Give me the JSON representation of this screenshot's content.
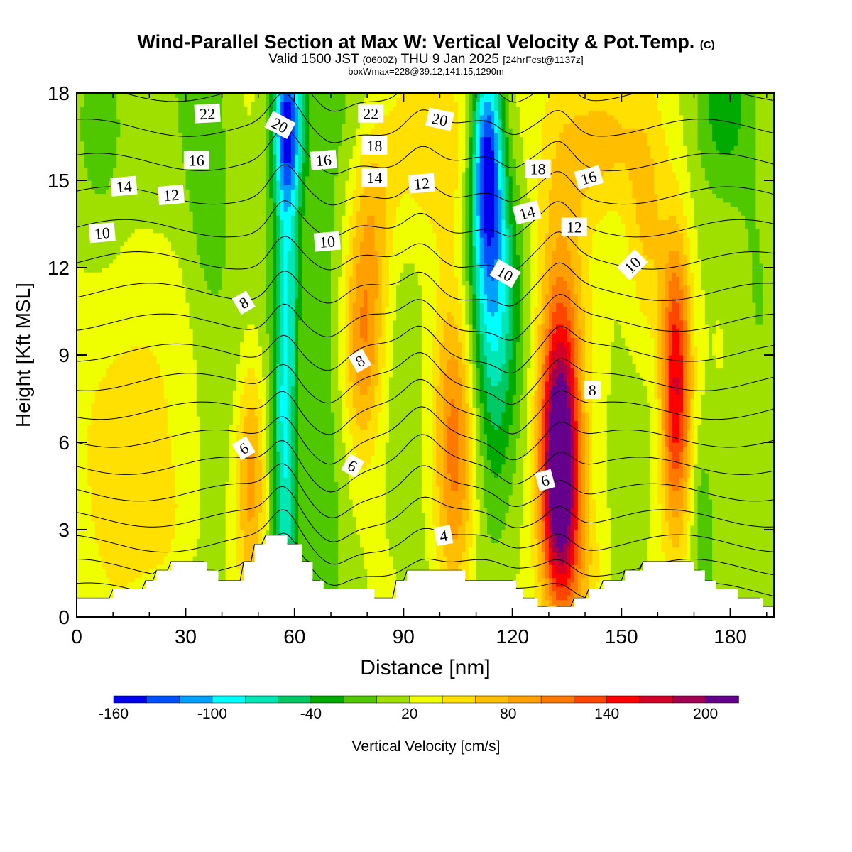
{
  "header": {
    "title": "Wind-Parallel Section at Max W: Vertical Velocity & Pot.Temp.",
    "title_mark": "(C)",
    "valid_prefix": "Valid 1500 JST",
    "valid_utc": "(0600Z)",
    "valid_date": "THU 9 Jan 2025",
    "forecast_info": "[24hrFcst@1137z]",
    "box_info": "boxWmax=228@39.12,141.15,1290m"
  },
  "chart_data": {
    "type": "heatmap",
    "title": "Wind-Parallel Section at Max W: Vertical Velocity & Pot.Temp.",
    "xlabel": "Distance [nm]",
    "ylabel": "Height [Kft MSL]",
    "xlim": [
      0,
      192
    ],
    "ylim": [
      0,
      18
    ],
    "x_ticks": [
      0,
      30,
      60,
      90,
      120,
      150,
      180
    ],
    "y_ticks": [
      0,
      3,
      6,
      9,
      12,
      15,
      18
    ],
    "colorbar": {
      "label": "Vertical Velocity [cm/s]",
      "min": -160,
      "max": 220,
      "step": 20,
      "tick_labels": [
        -160,
        -100,
        -40,
        20,
        80,
        140,
        200
      ],
      "colors": [
        "#0000ee",
        "#0050ff",
        "#00a0ff",
        "#00ffff",
        "#00e6b4",
        "#00c864",
        "#00aa00",
        "#50c800",
        "#a0e000",
        "#f0ff00",
        "#ffe000",
        "#ffbe00",
        "#ffa000",
        "#ff7800",
        "#ff4600",
        "#ff0000",
        "#d20028",
        "#a00050",
        "#64008c"
      ]
    },
    "max_w": {
      "value": 228,
      "units": "cm/s",
      "lat": 39.12,
      "lon": 141.15,
      "height_m": 1290
    },
    "updrafts": [
      {
        "x": 12,
        "z": 6.5,
        "w": 45,
        "sx": 10,
        "sz": 4
      },
      {
        "x": 25,
        "z": 2.8,
        "w": 25,
        "sx": 6,
        "sz": 2
      },
      {
        "x": 48,
        "z": 5,
        "w": 75,
        "sx": 3,
        "sz": 3
      },
      {
        "x": 79,
        "z": 9.5,
        "w": 85,
        "sx": 4,
        "sz": 3
      },
      {
        "x": 82,
        "z": 14,
        "w": 40,
        "sx": 4,
        "sz": 3
      },
      {
        "x": 104,
        "z": 5.5,
        "w": 95,
        "sx": 4,
        "sz": 4
      },
      {
        "x": 133,
        "z": 5,
        "w": 200,
        "sx": 3.5,
        "sz": 3
      },
      {
        "x": 133,
        "z": 9,
        "w": 80,
        "sx": 5,
        "sz": 5
      },
      {
        "x": 139,
        "z": 1.5,
        "w": 50,
        "sx": 5,
        "sz": 2
      },
      {
        "x": 165,
        "z": 8,
        "w": 155,
        "sx": 3,
        "sz": 3.5
      },
      {
        "x": 157,
        "z": 13,
        "w": 50,
        "sx": 4,
        "sz": 3
      },
      {
        "x": 144,
        "z": 16.5,
        "w": 60,
        "sx": 8,
        "sz": 2
      },
      {
        "x": 100,
        "z": 16.5,
        "w": 50,
        "sx": 10,
        "sz": 2.5
      },
      {
        "x": 57,
        "z": 5,
        "w": 0,
        "sx": 1,
        "sz": 1
      }
    ],
    "downdrafts": [
      {
        "x": 57,
        "z": 4,
        "w": -70,
        "sx": 2.5,
        "sz": 5
      },
      {
        "x": 58,
        "z": 12,
        "w": -70,
        "sx": 2.5,
        "sz": 5
      },
      {
        "x": 58,
        "z": 17,
        "w": -120,
        "sx": 3,
        "sz": 2
      },
      {
        "x": 113,
        "z": 16,
        "w": -150,
        "sx": 3,
        "sz": 2.5
      },
      {
        "x": 114,
        "z": 12,
        "w": -80,
        "sx": 5,
        "sz": 3
      },
      {
        "x": 115,
        "z": 8,
        "w": -40,
        "sx": 4,
        "sz": 4
      },
      {
        "x": 36,
        "z": 16,
        "w": -30,
        "sx": 4,
        "sz": 4
      },
      {
        "x": 7,
        "z": 17,
        "w": -40,
        "sx": 4,
        "sz": 2
      },
      {
        "x": 68,
        "z": 9,
        "w": -30,
        "sx": 4,
        "sz": 6
      },
      {
        "x": 178,
        "z": 17.5,
        "w": -35,
        "sx": 5,
        "sz": 2
      },
      {
        "x": 172,
        "z": 3.5,
        "w": -25,
        "sx": 2,
        "sz": 2
      },
      {
        "x": 186,
        "z": 11,
        "w": -15,
        "sx": 4,
        "sz": 4
      },
      {
        "x": 80,
        "z": 17.5,
        "w": -20,
        "sx": 6,
        "sz": 1.5
      }
    ],
    "terrain": [
      {
        "x": 0,
        "z": 0.65
      },
      {
        "x": 10,
        "z": 0.65
      },
      {
        "x": 10,
        "z": 0.95
      },
      {
        "x": 19,
        "z": 0.95
      },
      {
        "x": 19,
        "z": 1.25
      },
      {
        "x": 22,
        "z": 1.25
      },
      {
        "x": 22,
        "z": 1.6
      },
      {
        "x": 26,
        "z": 1.6
      },
      {
        "x": 26,
        "z": 1.9
      },
      {
        "x": 36,
        "z": 1.9
      },
      {
        "x": 36,
        "z": 1.6
      },
      {
        "x": 39,
        "z": 1.6
      },
      {
        "x": 39,
        "z": 1.25
      },
      {
        "x": 46,
        "z": 1.25
      },
      {
        "x": 46,
        "z": 1.9
      },
      {
        "x": 49,
        "z": 1.9
      },
      {
        "x": 49,
        "z": 2.5
      },
      {
        "x": 52,
        "z": 2.5
      },
      {
        "x": 52,
        "z": 2.8
      },
      {
        "x": 58,
        "z": 2.8
      },
      {
        "x": 58,
        "z": 2.5
      },
      {
        "x": 62,
        "z": 2.5
      },
      {
        "x": 62,
        "z": 1.9
      },
      {
        "x": 65,
        "z": 1.9
      },
      {
        "x": 65,
        "z": 1.25
      },
      {
        "x": 68,
        "z": 1.25
      },
      {
        "x": 68,
        "z": 0.95
      },
      {
        "x": 82,
        "z": 0.95
      },
      {
        "x": 82,
        "z": 0.65
      },
      {
        "x": 88,
        "z": 0.65
      },
      {
        "x": 88,
        "z": 1.25
      },
      {
        "x": 91,
        "z": 1.25
      },
      {
        "x": 91,
        "z": 1.6
      },
      {
        "x": 107,
        "z": 1.6
      },
      {
        "x": 107,
        "z": 1.25
      },
      {
        "x": 121,
        "z": 1.25
      },
      {
        "x": 121,
        "z": 0.95
      },
      {
        "x": 123,
        "z": 0.95
      },
      {
        "x": 123,
        "z": 0.65
      },
      {
        "x": 127,
        "z": 0.65
      },
      {
        "x": 127,
        "z": 0.35
      },
      {
        "x": 137,
        "z": 0.35
      },
      {
        "x": 137,
        "z": 0.65
      },
      {
        "x": 141,
        "z": 0.65
      },
      {
        "x": 141,
        "z": 0.95
      },
      {
        "x": 145,
        "z": 0.95
      },
      {
        "x": 145,
        "z": 1.25
      },
      {
        "x": 151,
        "z": 1.25
      },
      {
        "x": 151,
        "z": 1.6
      },
      {
        "x": 156,
        "z": 1.6
      },
      {
        "x": 156,
        "z": 1.9
      },
      {
        "x": 170,
        "z": 1.9
      },
      {
        "x": 170,
        "z": 1.6
      },
      {
        "x": 173,
        "z": 1.6
      },
      {
        "x": 173,
        "z": 1.25
      },
      {
        "x": 176,
        "z": 1.25
      },
      {
        "x": 176,
        "z": 0.95
      },
      {
        "x": 182,
        "z": 0.95
      },
      {
        "x": 182,
        "z": 0.65
      },
      {
        "x": 189,
        "z": 0.65
      },
      {
        "x": 189,
        "z": 0.35
      },
      {
        "x": 192,
        "z": 0.35
      }
    ],
    "potential_temperature": {
      "units": "deg C",
      "levels": [
        2,
        3,
        4,
        5,
        6,
        7,
        8,
        9,
        10,
        11,
        12,
        13,
        14,
        15,
        16,
        17,
        18,
        19,
        20,
        21,
        22,
        23,
        24
      ],
      "labels": [
        {
          "text": "22",
          "x": 36,
          "z": 17.3,
          "angle": -3
        },
        {
          "text": "20",
          "x": 56,
          "z": 16.9,
          "angle": 28
        },
        {
          "text": "22",
          "x": 81,
          "z": 17.3,
          "angle": 0
        },
        {
          "text": "20",
          "x": 100,
          "z": 17.1,
          "angle": 12
        },
        {
          "text": "18",
          "x": 82,
          "z": 16.2,
          "angle": 0
        },
        {
          "text": "16",
          "x": 33,
          "z": 15.7,
          "angle": 0
        },
        {
          "text": "16",
          "x": 68,
          "z": 15.7,
          "angle": -5
        },
        {
          "text": "14",
          "x": 82,
          "z": 15.1,
          "angle": 0
        },
        {
          "text": "18",
          "x": 127,
          "z": 15.4,
          "angle": 0
        },
        {
          "text": "16",
          "x": 141,
          "z": 15.1,
          "angle": -15
        },
        {
          "text": "14",
          "x": 13,
          "z": 14.8,
          "angle": -5
        },
        {
          "text": "12",
          "x": 26,
          "z": 14.5,
          "angle": -5
        },
        {
          "text": "12",
          "x": 95,
          "z": 14.9,
          "angle": -5
        },
        {
          "text": "14",
          "x": 124,
          "z": 13.9,
          "angle": -15
        },
        {
          "text": "12",
          "x": 137,
          "z": 13.4,
          "angle": 0
        },
        {
          "text": "10",
          "x": 7,
          "z": 13.2,
          "angle": -5
        },
        {
          "text": "10",
          "x": 69,
          "z": 12.9,
          "angle": -5
        },
        {
          "text": "10",
          "x": 118,
          "z": 11.8,
          "angle": 30
        },
        {
          "text": "10",
          "x": 153,
          "z": 12.1,
          "angle": -45
        },
        {
          "text": "8",
          "x": 46,
          "z": 10.8,
          "angle": -30
        },
        {
          "text": "8",
          "x": 78,
          "z": 8.8,
          "angle": -30
        },
        {
          "text": "8",
          "x": 142,
          "z": 7.8,
          "angle": 0
        },
        {
          "text": "6",
          "x": 46,
          "z": 5.8,
          "angle": -30
        },
        {
          "text": "6",
          "x": 76,
          "z": 5.2,
          "angle": 30
        },
        {
          "text": "6",
          "x": 129,
          "z": 4.7,
          "angle": -15
        },
        {
          "text": "4",
          "x": 101,
          "z": 2.8,
          "angle": -10
        }
      ]
    }
  }
}
